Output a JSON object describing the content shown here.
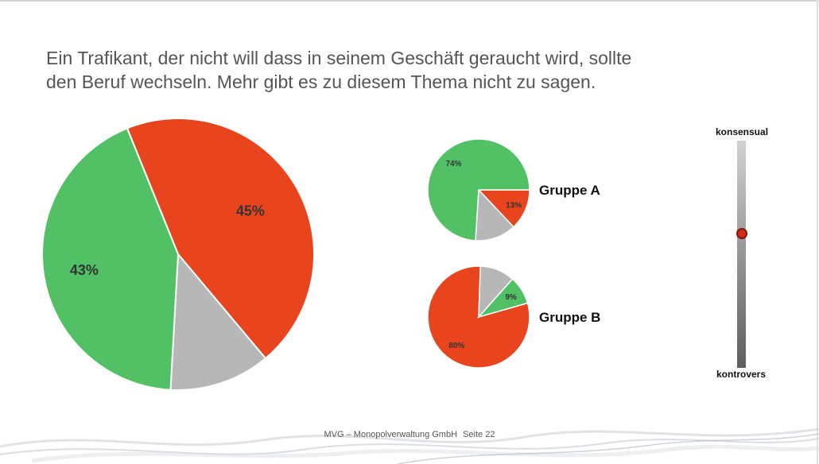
{
  "slide": {
    "title_line1": "Ein Trafikant, der nicht will dass in seinem Geschäft geraucht wird, sollte",
    "title_line2": "den Beruf wechseln. Mehr gibt es zu diesem Thema nicht zu sagen.",
    "footer_company": "MVG – Monopolverwaltung GmbH",
    "footer_page": "Seite 22"
  },
  "colors": {
    "green": "#52c064",
    "red": "#e8451f",
    "gray": "#b7b7b7",
    "marker": "#d42a14"
  },
  "scale": {
    "top_label": "konsensual",
    "bottom_label": "kontrovers",
    "level": 0.41
  },
  "chart_data": [
    {
      "type": "pie",
      "name": "",
      "slices": [
        {
          "label": "45%",
          "value": 45,
          "color": "#e8451f"
        },
        {
          "label": "",
          "value": 12,
          "color": "#b7b7b7"
        },
        {
          "label": "43%",
          "value": 43,
          "color": "#52c064"
        }
      ]
    },
    {
      "type": "pie",
      "name": "Gruppe A",
      "slices": [
        {
          "label": "13%",
          "value": 13,
          "color": "#e8451f"
        },
        {
          "label": "",
          "value": 13,
          "color": "#b7b7b7"
        },
        {
          "label": "74%",
          "value": 74,
          "color": "#52c064"
        }
      ]
    },
    {
      "type": "pie",
      "name": "Gruppe B",
      "slices": [
        {
          "label": "80%",
          "value": 80,
          "color": "#e8451f"
        },
        {
          "label": "",
          "value": 11,
          "color": "#b7b7b7"
        },
        {
          "label": "9%",
          "value": 9,
          "color": "#52c064"
        }
      ]
    }
  ]
}
